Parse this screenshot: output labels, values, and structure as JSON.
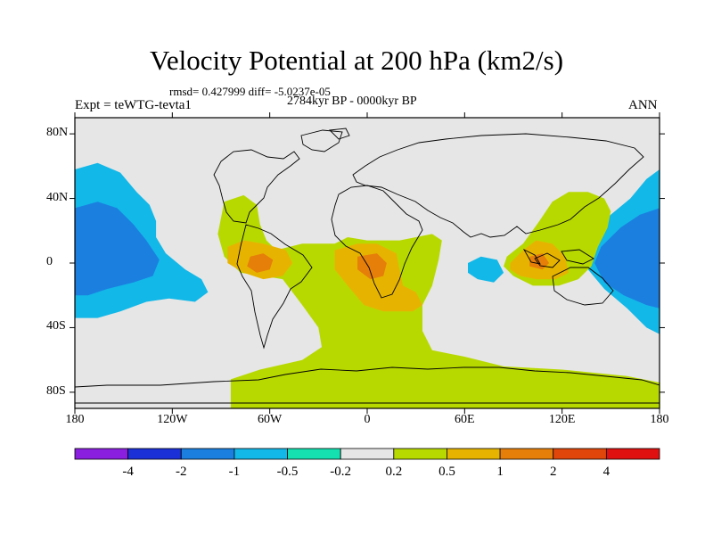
{
  "header": {
    "title": "Velocity Potential at 200 hPa (km2/s)",
    "stats": "rmsd= 0.427999 diff= -5.0237e-05",
    "period": "2784kyr BP - 0000kyr BP",
    "experiment": "Expt = teWTG-tevta1",
    "season": "ANN"
  },
  "chart_data": {
    "type": "heatmap",
    "title": "Velocity Potential at 200 hPa (km2/s)",
    "xlim": [
      -180,
      180
    ],
    "ylim": [
      -90,
      90
    ],
    "x_ticks": [
      {
        "value": -180,
        "label": "180"
      },
      {
        "value": -120,
        "label": "120W"
      },
      {
        "value": -60,
        "label": "60W"
      },
      {
        "value": 0,
        "label": "0"
      },
      {
        "value": 60,
        "label": "60E"
      },
      {
        "value": 120,
        "label": "120E"
      },
      {
        "value": 180,
        "label": "180"
      }
    ],
    "y_ticks": [
      {
        "value": 80,
        "label": "80N"
      },
      {
        "value": 40,
        "label": "40N"
      },
      {
        "value": 0,
        "label": "0"
      },
      {
        "value": -40,
        "label": "40S"
      },
      {
        "value": -80,
        "label": "80S"
      }
    ],
    "colorbar": {
      "labels": [
        "-4",
        "-2",
        "-1",
        "-0.5",
        "-0.2",
        "0.2",
        "0.5",
        "1",
        "2",
        "4"
      ],
      "colors": [
        "#8a1fe0",
        "#1c30d8",
        "#1b7fe0",
        "#12b8e8",
        "#14e0b0",
        "#e6e6e6",
        "#b8d900",
        "#e6b400",
        "#e67e0a",
        "#e0460a",
        "#e01010"
      ]
    },
    "regions": [
      {
        "level": "-0.5",
        "points": [
          [
            -180,
            58
          ],
          [
            -166,
            62
          ],
          [
            -152,
            56
          ],
          [
            -142,
            44
          ],
          [
            -134,
            36
          ],
          [
            -130,
            26
          ],
          [
            -130,
            16
          ],
          [
            -124,
            6
          ],
          [
            -112,
            -4
          ],
          [
            -102,
            -10
          ],
          [
            -98,
            -18
          ],
          [
            -106,
            -24
          ],
          [
            -122,
            -22
          ],
          [
            -136,
            -24
          ],
          [
            -152,
            -30
          ],
          [
            -166,
            -34
          ],
          [
            -180,
            -34
          ]
        ]
      },
      {
        "level": "-1",
        "points": [
          [
            -180,
            34
          ],
          [
            -166,
            38
          ],
          [
            -154,
            34
          ],
          [
            -144,
            24
          ],
          [
            -136,
            14
          ],
          [
            -128,
            2
          ],
          [
            -132,
            -8
          ],
          [
            -144,
            -12
          ],
          [
            -160,
            -16
          ],
          [
            -172,
            -20
          ],
          [
            -180,
            -20
          ]
        ]
      },
      {
        "level": "-0.5",
        "points": [
          [
            180,
            58
          ],
          [
            172,
            52
          ],
          [
            162,
            40
          ],
          [
            150,
            30
          ],
          [
            140,
            20
          ],
          [
            132,
            8
          ],
          [
            136,
            -4
          ],
          [
            146,
            -16
          ],
          [
            160,
            -28
          ],
          [
            172,
            -40
          ],
          [
            180,
            -44
          ]
        ]
      },
      {
        "level": "-1",
        "points": [
          [
            180,
            34
          ],
          [
            168,
            30
          ],
          [
            156,
            22
          ],
          [
            144,
            10
          ],
          [
            140,
            0
          ],
          [
            146,
            -12
          ],
          [
            158,
            -20
          ],
          [
            172,
            -26
          ],
          [
            180,
            -28
          ]
        ]
      },
      {
        "level": "-0.5",
        "points": [
          [
            62,
            0
          ],
          [
            70,
            4
          ],
          [
            80,
            2
          ],
          [
            84,
            -6
          ],
          [
            78,
            -12
          ],
          [
            68,
            -10
          ],
          [
            62,
            -6
          ]
        ]
      },
      {
        "level": "0.2",
        "points": [
          [
            -88,
            38
          ],
          [
            -76,
            42
          ],
          [
            -68,
            36
          ],
          [
            -66,
            24
          ],
          [
            -62,
            14
          ],
          [
            -56,
            8
          ],
          [
            -40,
            12
          ],
          [
            -20,
            12
          ],
          [
            -12,
            16
          ],
          [
            0,
            14
          ],
          [
            20,
            14
          ],
          [
            40,
            18
          ],
          [
            46,
            14
          ],
          [
            44,
            2
          ],
          [
            40,
            -14
          ],
          [
            34,
            -26
          ],
          [
            34,
            -42
          ],
          [
            40,
            -54
          ],
          [
            60,
            -58
          ],
          [
            84,
            -64
          ],
          [
            120,
            -66
          ],
          [
            160,
            -70
          ],
          [
            180,
            -74
          ],
          [
            180,
            -90
          ],
          [
            -84,
            -90
          ],
          [
            -84,
            -72
          ],
          [
            -66,
            -66
          ],
          [
            -40,
            -60
          ],
          [
            -28,
            -52
          ],
          [
            -30,
            -40
          ],
          [
            -40,
            -26
          ],
          [
            -52,
            -10
          ],
          [
            -64,
            -8
          ],
          [
            -78,
            -6
          ],
          [
            -88,
            4
          ],
          [
            -92,
            18
          ]
        ]
      },
      {
        "level": "0.2",
        "points": [
          [
            86,
            4
          ],
          [
            96,
            12
          ],
          [
            106,
            26
          ],
          [
            114,
            38
          ],
          [
            124,
            44
          ],
          [
            136,
            44
          ],
          [
            146,
            40
          ],
          [
            150,
            32
          ],
          [
            148,
            22
          ],
          [
            142,
            10
          ],
          [
            138,
            -2
          ],
          [
            130,
            -10
          ],
          [
            118,
            -14
          ],
          [
            102,
            -14
          ],
          [
            90,
            -8
          ],
          [
            84,
            -2
          ]
        ]
      },
      {
        "level": "0.5",
        "points": [
          [
            -86,
            10
          ],
          [
            -76,
            14
          ],
          [
            -64,
            12
          ],
          [
            -50,
            8
          ],
          [
            -46,
            0
          ],
          [
            -52,
            -8
          ],
          [
            -64,
            -10
          ],
          [
            -76,
            -6
          ],
          [
            -86,
            0
          ]
        ]
      },
      {
        "level": "0.5",
        "points": [
          [
            -20,
            8
          ],
          [
            -6,
            12
          ],
          [
            6,
            12
          ],
          [
            18,
            6
          ],
          [
            20,
            -4
          ],
          [
            22,
            -14
          ],
          [
            30,
            -18
          ],
          [
            34,
            -26
          ],
          [
            28,
            -30
          ],
          [
            10,
            -30
          ],
          [
            -2,
            -26
          ],
          [
            -12,
            -14
          ],
          [
            -20,
            -4
          ]
        ]
      },
      {
        "level": "0.5",
        "points": [
          [
            88,
            0
          ],
          [
            96,
            8
          ],
          [
            104,
            14
          ],
          [
            114,
            12
          ],
          [
            122,
            4
          ],
          [
            124,
            -6
          ],
          [
            116,
            -10
          ],
          [
            104,
            -10
          ],
          [
            94,
            -8
          ],
          [
            88,
            -4
          ]
        ]
      },
      {
        "level": "1",
        "points": [
          [
            -72,
            4
          ],
          [
            -64,
            6
          ],
          [
            -58,
            2
          ],
          [
            -60,
            -4
          ],
          [
            -68,
            -6
          ],
          [
            -74,
            -2
          ]
        ]
      },
      {
        "level": "1",
        "points": [
          [
            -6,
            4
          ],
          [
            6,
            6
          ],
          [
            12,
            0
          ],
          [
            10,
            -8
          ],
          [
            2,
            -10
          ],
          [
            -6,
            -4
          ]
        ]
      },
      {
        "level": "1",
        "points": [
          [
            100,
            4
          ],
          [
            108,
            6
          ],
          [
            112,
            0
          ],
          [
            108,
            -4
          ],
          [
            100,
            -2
          ]
        ]
      }
    ]
  }
}
